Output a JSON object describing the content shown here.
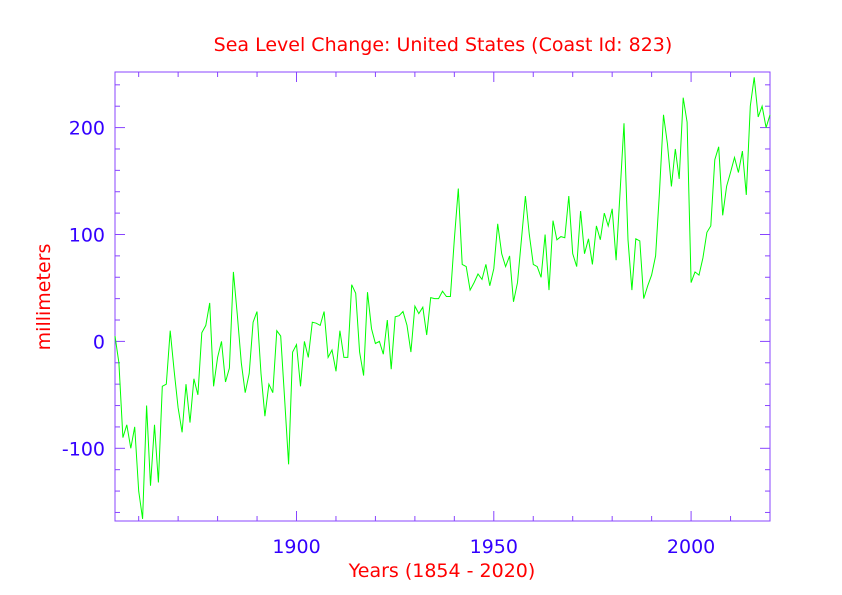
{
  "chart_data": {
    "type": "line",
    "title": "Sea Level Change: United States (Coast Id: 823)",
    "xlabel": "Years (1854 - 2020)",
    "ylabel": "millimeters",
    "xlim": [
      1854,
      2020
    ],
    "ylim": [
      -168,
      252
    ],
    "xticks": [
      1900,
      1950,
      2000
    ],
    "xtick_labels": [
      "1900",
      "1950",
      "2000"
    ],
    "yticks": [
      -100,
      0,
      100,
      200
    ],
    "ytick_labels": [
      "-100",
      "0",
      "100",
      "200"
    ],
    "colors": {
      "title": "#ff0000",
      "axis_label": "#ff0000",
      "tick_label": "#3300ff",
      "frame": "#8844ff",
      "series": "#00ff00"
    },
    "series": [
      {
        "name": "sea level",
        "x": [
          1854,
          1855,
          1856,
          1857,
          1858,
          1859,
          1860,
          1861,
          1862,
          1863,
          1864,
          1865,
          1866,
          1867,
          1868,
          1869,
          1870,
          1871,
          1872,
          1873,
          1874,
          1875,
          1876,
          1877,
          1878,
          1879,
          1880,
          1881,
          1882,
          1883,
          1884,
          1885,
          1886,
          1887,
          1888,
          1889,
          1890,
          1891,
          1892,
          1893,
          1894,
          1895,
          1896,
          1897,
          1898,
          1899,
          1900,
          1901,
          1902,
          1903,
          1904,
          1905,
          1906,
          1907,
          1908,
          1909,
          1910,
          1911,
          1912,
          1913,
          1914,
          1915,
          1916,
          1917,
          1918,
          1919,
          1920,
          1921,
          1922,
          1923,
          1924,
          1925,
          1926,
          1927,
          1928,
          1929,
          1930,
          1931,
          1932,
          1933,
          1934,
          1935,
          1936,
          1937,
          1938,
          1939,
          1940,
          1941,
          1942,
          1943,
          1944,
          1945,
          1946,
          1947,
          1948,
          1949,
          1950,
          1951,
          1952,
          1953,
          1954,
          1955,
          1956,
          1957,
          1958,
          1959,
          1960,
          1961,
          1962,
          1963,
          1964,
          1965,
          1966,
          1967,
          1968,
          1969,
          1970,
          1971,
          1972,
          1973,
          1974,
          1975,
          1976,
          1977,
          1978,
          1979,
          1980,
          1981,
          1982,
          1983,
          1984,
          1985,
          1986,
          1987,
          1988,
          1989,
          1990,
          1991,
          1992,
          1993,
          1994,
          1995,
          1996,
          1997,
          1998,
          1999,
          2000,
          2001,
          2002,
          2003,
          2004,
          2005,
          2006,
          2007,
          2008,
          2009,
          2010,
          2011,
          2012,
          2013,
          2014,
          2015,
          2016,
          2017,
          2018,
          2019,
          2020
        ],
        "values": [
          5,
          -20,
          -90,
          -78,
          -100,
          -80,
          -140,
          -166,
          -60,
          -135,
          -78,
          -132,
          -42,
          -40,
          10,
          -28,
          -62,
          -85,
          -40,
          -76,
          -35,
          -50,
          8,
          15,
          36,
          -42,
          -15,
          0,
          -38,
          -25,
          65,
          25,
          -20,
          -48,
          -30,
          18,
          28,
          -30,
          -70,
          -40,
          -48,
          10,
          5,
          -55,
          -115,
          -10,
          -3,
          -42,
          0,
          -15,
          18,
          17,
          15,
          28,
          -15,
          -8,
          -28,
          10,
          -15,
          -15,
          53,
          45,
          -10,
          -32,
          46,
          12,
          -2,
          0,
          -12,
          20,
          -26,
          23,
          24,
          28,
          15,
          -10,
          33,
          26,
          32,
          6,
          41,
          40,
          40,
          47,
          42,
          42,
          95,
          143,
          72,
          70,
          48,
          55,
          63,
          58,
          72,
          52,
          68,
          110,
          82,
          70,
          80,
          37,
          55,
          95,
          136,
          100,
          72,
          70,
          60,
          100,
          48,
          113,
          95,
          98,
          97,
          136,
          82,
          70,
          122,
          82,
          96,
          72,
          108,
          95,
          120,
          108,
          124,
          76,
          140,
          204,
          95,
          48,
          96,
          94,
          40,
          52,
          62,
          80,
          140,
          212,
          185,
          145,
          180,
          152,
          228,
          205,
          55,
          65,
          62,
          78,
          102,
          108,
          170,
          182,
          118,
          145,
          158,
          172,
          158,
          178,
          137,
          220,
          247,
          210,
          220,
          200,
          212
        ]
      }
    ]
  }
}
